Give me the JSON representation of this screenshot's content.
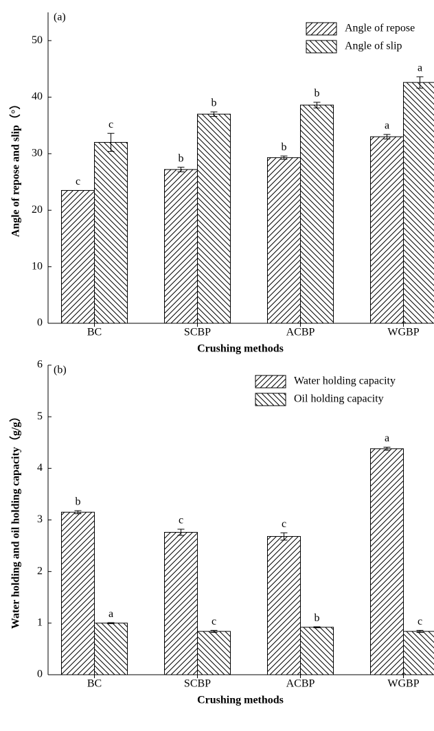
{
  "chart_data": [
    {
      "type": "bar",
      "panel_label": "(a)",
      "x_label": "Crushing methods",
      "y_label": "Angle of repose and slip（°）",
      "categories": [
        "BC",
        "SCBP",
        "ACBP",
        "WGBP"
      ],
      "ylim": [
        0,
        55
      ],
      "yticks": [
        0,
        10,
        20,
        30,
        40,
        50
      ],
      "series": [
        {
          "name": "Angle of repose",
          "hatch": "forward",
          "values": [
            23.5,
            27.2,
            29.3,
            33.0
          ],
          "errors": [
            0.0,
            0.4,
            0.3,
            0.4
          ],
          "letters": [
            "c",
            "b",
            "b",
            "a"
          ]
        },
        {
          "name": "Angle of slip",
          "hatch": "back",
          "values": [
            32.0,
            37.0,
            38.6,
            42.6
          ],
          "errors": [
            1.6,
            0.4,
            0.5,
            1.0
          ],
          "letters": [
            "c",
            "b",
            "b",
            "a"
          ]
        }
      ]
    },
    {
      "type": "bar",
      "panel_label": "(b)",
      "x_label": "Crushing methods",
      "y_label": "Water holding and oil holding capacity（g/g）",
      "categories": [
        "BC",
        "SCBP",
        "ACBP",
        "WGBP"
      ],
      "ylim": [
        0,
        6
      ],
      "yticks": [
        0,
        1,
        2,
        3,
        4,
        5,
        6
      ],
      "series": [
        {
          "name": "Water holding capacity",
          "hatch": "forward",
          "values": [
            3.15,
            2.76,
            2.68,
            4.38
          ],
          "errors": [
            0.03,
            0.06,
            0.07,
            0.03
          ],
          "letters": [
            "b",
            "c",
            "c",
            "a"
          ]
        },
        {
          "name": "Oil holding capacity",
          "hatch": "back",
          "values": [
            1.0,
            0.84,
            0.92,
            0.84
          ],
          "errors": [
            0.01,
            0.02,
            0.01,
            0.02
          ],
          "letters": [
            "a",
            "c",
            "b",
            "c"
          ]
        }
      ]
    }
  ]
}
